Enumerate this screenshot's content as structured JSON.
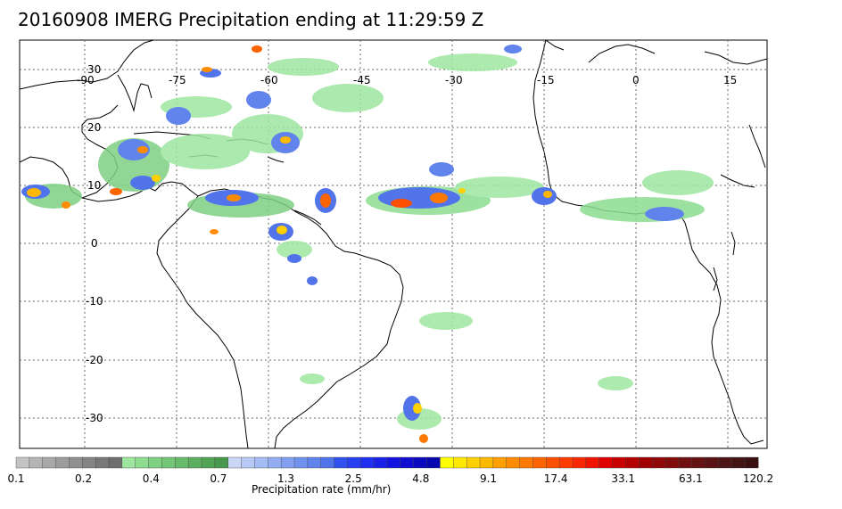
{
  "title": "20160908 IMERG Precipitation ending at 11:29:59 Z",
  "map": {
    "lat_labels": [
      "30",
      "20",
      "10",
      "0",
      "-10",
      "-20",
      "-30"
    ],
    "lon_labels": [
      "-90",
      "-75",
      "-60",
      "-45",
      "-30",
      "-15",
      "0",
      "15"
    ],
    "grid": true
  },
  "colorbar": {
    "title": "Precipitation rate (mm/hr)",
    "tick_labels": [
      "0.1",
      "0.2",
      "0.4",
      "0.7",
      "1.3",
      "2.5",
      "4.8",
      "9.1",
      "17.4",
      "33.1",
      "63.1",
      "120.2"
    ],
    "colors": [
      "#c4c4c4",
      "#b4b4b4",
      "#a8a8a8",
      "#9c9c9c",
      "#909090",
      "#848484",
      "#787878",
      "#6e6e6e",
      "#9ee6a0",
      "#8ddc90",
      "#7fd083",
      "#74c577",
      "#68ba6c",
      "#5dae61",
      "#53a357",
      "#48984d",
      "#c9d6f5",
      "#b7c9f5",
      "#a4bbf3",
      "#93adf1",
      "#829ff0",
      "#7191ee",
      "#6183ec",
      "#5174ea",
      "#3050f0",
      "#2840f2",
      "#2030f0",
      "#1a22e8",
      "#1414e0",
      "#0e0ed0",
      "#0a0ac0",
      "#0808b0",
      "#ffff00",
      "#ffe800",
      "#ffd000",
      "#ffb800",
      "#ffa000",
      "#ff8c00",
      "#ff7800",
      "#ff6400",
      "#ff5000",
      "#ff3c00",
      "#f82800",
      "#ee1400",
      "#e00000",
      "#c80000",
      "#b40000",
      "#a00000",
      "#900808",
      "#800c0c",
      "#701010",
      "#641212",
      "#581414",
      "#4c1414",
      "#421414",
      "#381010"
    ]
  },
  "colors": {
    "coastline": "#000000",
    "grid": "#6a6a6a",
    "frame": "#000000"
  }
}
